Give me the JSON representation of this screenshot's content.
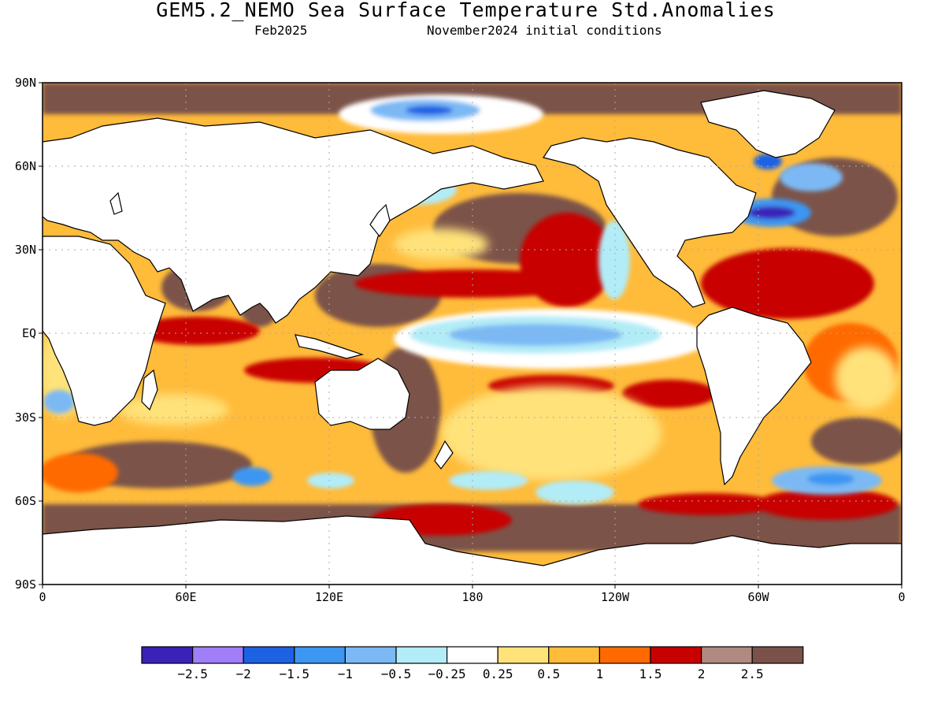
{
  "title": "GEM5.2_NEMO Sea Surface Temperature Std.Anomalies",
  "subtitle_left": "Feb2025",
  "subtitle_right": "November2024 initial conditions",
  "axes": {
    "lat_labels": [
      "90N",
      "60N",
      "30N",
      "EQ",
      "30S",
      "60S",
      "90S"
    ],
    "lon_labels": [
      "0",
      "60E",
      "120E",
      "180",
      "120W",
      "60W",
      "0"
    ]
  },
  "colorbar": {
    "labels": [
      "−2.5",
      "−2",
      "−1.5",
      "−1",
      "−0.5",
      "−0.25",
      "0.25",
      "0.5",
      "1",
      "1.5",
      "2",
      "2.5"
    ],
    "colors": [
      "#3a22b8",
      "#9f7ef7",
      "#1e62e4",
      "#3c96f2",
      "#7cb9f4",
      "#b2ecf7",
      "#ffffff",
      "#ffe27a",
      "#ffbb3a",
      "#ff6a00",
      "#c80000",
      "#b08a80",
      "#7b5249"
    ]
  },
  "colors": {
    "land": "#ffffff",
    "coast": "#000000",
    "grid": "#aaaaaa"
  }
}
